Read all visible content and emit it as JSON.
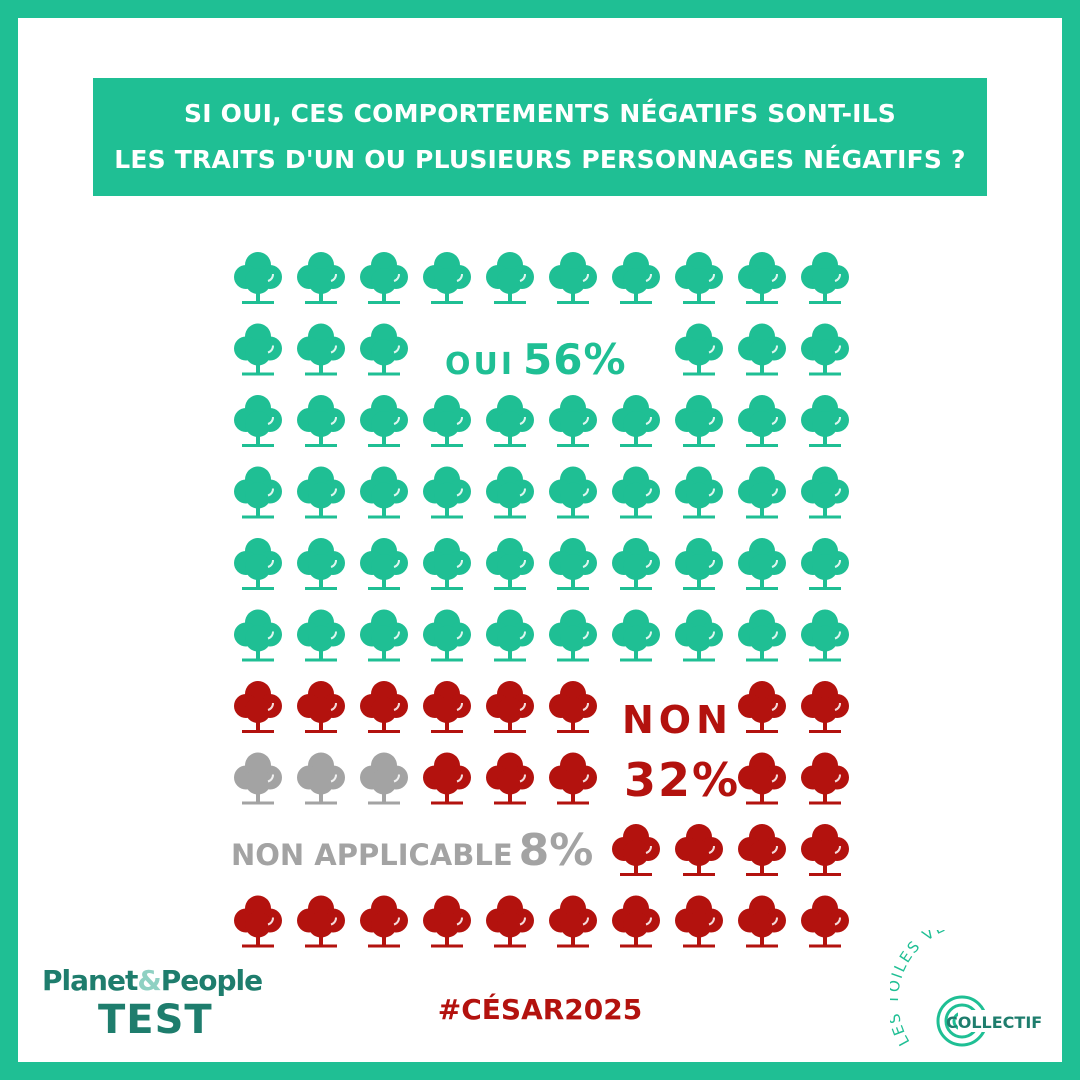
{
  "title": {
    "line1": "SI OUI, CES COMPORTEMENTS NÉGATIFS SONT-ILS",
    "line2": "LES TRAITS D'UN OU PLUSIEURS PERSONNAGES NÉGATIFS ?"
  },
  "labels": {
    "oui": "OUI",
    "oui_pct": "56%",
    "non": "NON",
    "non_pct": "32%",
    "na": "NON APPLICABLE",
    "na_pct": "8%"
  },
  "chart_data": {
    "type": "waffle",
    "categories": [
      "OUI",
      "NON",
      "NON APPLICABLE"
    ],
    "values": [
      56,
      32,
      8
    ],
    "unit": "%",
    "icon": "tree-icon",
    "colors": {
      "OUI": "#1fbf94",
      "NON": "#b3120e",
      "NON APPLICABLE": "#a3a3a3"
    },
    "grid": {
      "rows": 10,
      "cols": 10
    }
  },
  "footer": {
    "brand_part1": "Planet",
    "brand_amp": "&",
    "brand_part2": "People",
    "brand_line2": "TEST",
    "hashtag": "#CÉSAR2025",
    "logo_arc_text": "LES TOILES VERTES",
    "logo_word": "COLLECTIF"
  },
  "colors": {
    "frame": "#1fbf94",
    "background": "#ffffff",
    "accent": "#1fbf94",
    "non": "#b3120e",
    "na": "#a3a3a3"
  }
}
